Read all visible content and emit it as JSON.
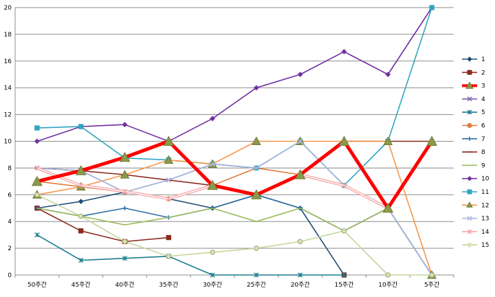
{
  "chart_data": {
    "type": "line",
    "title": "",
    "xlabel": "",
    "ylabel": "",
    "categories": [
      "50주간",
      "45주간",
      "40주간",
      "35주간",
      "30주간",
      "25주간",
      "20주간",
      "15주간",
      "10주간",
      "5주간"
    ],
    "ylim": [
      0,
      20
    ],
    "yticks": [
      0,
      2,
      4,
      6,
      8,
      10,
      12,
      14,
      16,
      18,
      20
    ],
    "grid": "horizontal",
    "legend_position": "right",
    "series": [
      {
        "name": "1",
        "color": "#1F4E79",
        "marker": "diamond",
        "values": [
          5,
          5.5,
          6.2,
          5.7,
          5,
          6,
          5,
          0,
          null,
          null
        ]
      },
      {
        "name": "2",
        "color": "#8B2A1E",
        "marker": "square",
        "values": [
          5,
          3.3,
          2.5,
          2.8,
          null,
          null,
          null,
          0,
          null,
          null
        ]
      },
      {
        "name": "3",
        "color": "#FF0000",
        "marker": "triangle",
        "bold": true,
        "values": [
          7,
          7.8,
          8.8,
          10,
          6.7,
          6,
          7.5,
          10,
          5,
          10
        ]
      },
      {
        "name": "4",
        "color": "#7A5FA7",
        "marker": "x",
        "values": [
          8,
          7.8,
          6.2,
          7.1,
          8.3,
          8,
          10,
          6.7,
          5,
          0
        ]
      },
      {
        "name": "5",
        "color": "#1B7A8E",
        "marker": "star",
        "values": [
          3,
          1.1,
          1.25,
          1.4,
          0,
          0,
          0,
          0,
          null,
          null
        ]
      },
      {
        "name": "6",
        "color": "#E07B39",
        "marker": "circle",
        "values": [
          7,
          6.6,
          6.2,
          5.7,
          6.7,
          8,
          7.5,
          6.7,
          5,
          0
        ]
      },
      {
        "name": "7",
        "color": "#2E6DA4",
        "marker": "plus",
        "values": [
          5,
          4.4,
          5,
          4.3,
          5,
          6,
          5,
          3.3,
          5,
          0
        ]
      },
      {
        "name": "8",
        "color": "#8B2A1E",
        "marker": "dash",
        "values": [
          8,
          7.8,
          7.5,
          7.1,
          6.7,
          6,
          7.5,
          10,
          10,
          10
        ]
      },
      {
        "name": "9",
        "color": "#9BBB59",
        "marker": "none",
        "values": [
          5,
          4.4,
          3.75,
          4.3,
          5,
          4,
          5,
          3.3,
          5,
          10
        ]
      },
      {
        "name": "10",
        "color": "#7030A0",
        "marker": "diamond",
        "values": [
          10,
          11.1,
          11.25,
          10,
          11.7,
          14,
          15,
          16.7,
          15,
          20
        ]
      },
      {
        "name": "11",
        "color": "#31A4C2",
        "marker": "square",
        "values": [
          11,
          11.1,
          8.75,
          8.6,
          8.3,
          8,
          10,
          6.7,
          10,
          20
        ]
      },
      {
        "name": "12",
        "color": "#F79646",
        "marker": "triangle",
        "values": [
          6,
          6.6,
          7.5,
          8.6,
          8.3,
          10,
          10,
          10,
          10,
          0
        ]
      },
      {
        "name": "13",
        "color": "#A6B8DD",
        "marker": "x",
        "values": [
          8,
          7.8,
          6.2,
          7.1,
          8.3,
          8,
          10,
          6.7,
          5,
          0
        ]
      },
      {
        "name": "14",
        "color": "#F4A6A6",
        "marker": "star",
        "values": [
          8,
          6.7,
          6.25,
          5.7,
          6.7,
          6,
          7.5,
          6.7,
          5,
          10
        ]
      },
      {
        "name": "15",
        "color": "#C4D79B",
        "marker": "circle",
        "values": [
          6,
          4.4,
          2.5,
          1.4,
          1.7,
          2,
          2.5,
          3.3,
          0,
          0
        ]
      }
    ]
  }
}
